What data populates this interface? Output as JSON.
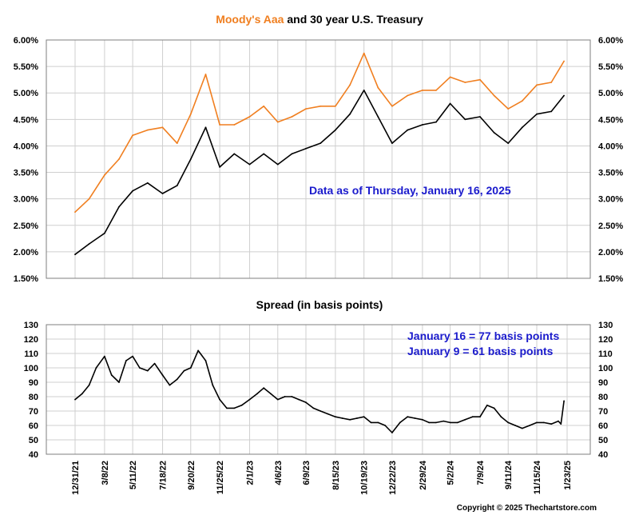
{
  "colors": {
    "aaa": "#F07F20",
    "treasury": "#000000",
    "spread": "#000000",
    "note": "#1A1ACC",
    "grid": "#CFCFCF",
    "frame": "#7F7F7F"
  },
  "chart_data": [
    {
      "type": "line",
      "title_part1": "Moody's Aaa",
      "title_part2": " and 30 year U.S. Treasury",
      "annotation": "Data as of Thursday, January 16, 2025",
      "y_tick_labels": [
        "6.00%",
        "5.50%",
        "5.00%",
        "4.50%",
        "4.00%",
        "3.50%",
        "3.00%",
        "2.50%",
        "2.00%",
        "1.50%"
      ],
      "ylim": [
        1.5,
        6.0
      ],
      "x_tick_labels": [
        "12/31/21",
        "3/8/22",
        "5/11/22",
        "7/18/22",
        "9/20/22",
        "11/25/22",
        "2/1/23",
        "4/6/23",
        "6/9/23",
        "8/15/23",
        "10/19/23",
        "12/22/23",
        "2/29/24",
        "5/2/24",
        "7/9/24",
        "9/11/24",
        "11/15/24",
        "1/23/25"
      ],
      "grid": true,
      "series": [
        {
          "name": "Moody's Aaa",
          "x": [
            "12/31/21",
            "2/1/22",
            "3/8/22",
            "4/10/22",
            "5/11/22",
            "6/14/22",
            "7/18/22",
            "8/20/22",
            "9/20/22",
            "10/24/22",
            "11/25/22",
            "12/28/22",
            "2/1/23",
            "3/5/23",
            "4/6/23",
            "5/8/23",
            "6/9/23",
            "7/12/23",
            "8/15/23",
            "9/17/23",
            "10/19/23",
            "11/20/23",
            "12/22/23",
            "1/26/24",
            "2/29/24",
            "3/31/24",
            "5/2/24",
            "6/5/24",
            "7/9/24",
            "8/10/24",
            "9/11/24",
            "10/13/24",
            "11/15/24",
            "12/18/24",
            "1/16/25"
          ],
          "values": [
            2.75,
            3.0,
            3.45,
            3.75,
            4.2,
            4.3,
            4.35,
            4.05,
            4.6,
            5.35,
            4.4,
            4.4,
            4.55,
            4.75,
            4.45,
            4.55,
            4.7,
            4.75,
            4.75,
            5.15,
            5.75,
            5.1,
            4.75,
            4.95,
            5.05,
            5.05,
            5.3,
            5.2,
            5.25,
            4.95,
            4.7,
            4.85,
            5.15,
            5.2,
            5.6
          ]
        },
        {
          "name": "30 year U.S. Treasury",
          "x": [
            "12/31/21",
            "2/1/22",
            "3/8/22",
            "4/10/22",
            "5/11/22",
            "6/14/22",
            "7/18/22",
            "8/20/22",
            "9/20/22",
            "10/24/22",
            "11/25/22",
            "12/28/22",
            "2/1/23",
            "3/5/23",
            "4/6/23",
            "5/8/23",
            "6/9/23",
            "7/12/23",
            "8/15/23",
            "9/17/23",
            "10/19/23",
            "11/20/23",
            "12/22/23",
            "1/26/24",
            "2/29/24",
            "3/31/24",
            "5/2/24",
            "6/5/24",
            "7/9/24",
            "8/10/24",
            "9/11/24",
            "10/13/24",
            "11/15/24",
            "12/18/24",
            "1/16/25"
          ],
          "values": [
            1.95,
            2.15,
            2.35,
            2.85,
            3.15,
            3.3,
            3.1,
            3.25,
            3.75,
            4.35,
            3.6,
            3.85,
            3.65,
            3.85,
            3.65,
            3.85,
            3.95,
            4.05,
            4.3,
            4.6,
            5.05,
            4.55,
            4.05,
            4.3,
            4.4,
            4.45,
            4.8,
            4.5,
            4.55,
            4.25,
            4.05,
            4.35,
            4.6,
            4.65,
            4.95
          ]
        }
      ]
    },
    {
      "type": "line",
      "title": "Spread (in basis points)",
      "annotations": [
        "January 16 = 77 basis points",
        "January 9 = 61 basis points"
      ],
      "y_tick_labels": [
        "130",
        "120",
        "110",
        "100",
        "90",
        "80",
        "70",
        "60",
        "50",
        "40"
      ],
      "ylim": [
        40,
        130
      ],
      "x_tick_labels": [
        "12/31/21",
        "3/8/22",
        "5/11/22",
        "7/18/22",
        "9/20/22",
        "11/25/22",
        "2/1/23",
        "4/6/23",
        "6/9/23",
        "8/15/23",
        "10/19/23",
        "12/22/23",
        "2/29/24",
        "5/2/24",
        "7/9/24",
        "9/11/24",
        "11/15/24",
        "1/23/25"
      ],
      "grid": true,
      "series": [
        {
          "name": "Spread",
          "x": [
            "12/31/21",
            "1/16/22",
            "2/1/22",
            "2/17/22",
            "3/8/22",
            "3/24/22",
            "4/10/22",
            "4/26/22",
            "5/11/22",
            "5/27/22",
            "6/14/22",
            "6/30/22",
            "7/18/22",
            "8/3/22",
            "8/20/22",
            "9/5/22",
            "9/20/22",
            "10/7/22",
            "10/24/22",
            "11/9/22",
            "11/25/22",
            "12/11/22",
            "12/28/22",
            "1/14/23",
            "2/1/23",
            "2/18/23",
            "3/5/23",
            "3/21/23",
            "4/6/23",
            "4/22/23",
            "5/8/23",
            "5/24/23",
            "6/9/23",
            "6/26/23",
            "7/12/23",
            "7/29/23",
            "8/15/23",
            "8/31/23",
            "9/17/23",
            "10/3/23",
            "10/19/23",
            "11/4/23",
            "11/20/23",
            "12/6/23",
            "12/22/23",
            "1/9/24",
            "1/26/24",
            "2/12/24",
            "2/29/24",
            "3/15/24",
            "3/31/24",
            "4/17/24",
            "5/2/24",
            "5/19/24",
            "6/5/24",
            "6/22/24",
            "7/9/24",
            "7/25/24",
            "8/10/24",
            "8/26/24",
            "9/11/24",
            "9/27/24",
            "10/13/24",
            "10/30/24",
            "11/15/24",
            "12/1/24",
            "12/18/24",
            "1/3/25",
            "1/9/25",
            "1/16/25"
          ],
          "values": [
            78,
            82,
            88,
            100,
            108,
            95,
            90,
            105,
            108,
            100,
            98,
            103,
            95,
            88,
            92,
            98,
            100,
            112,
            105,
            88,
            78,
            72,
            72,
            74,
            78,
            82,
            86,
            82,
            78,
            80,
            80,
            78,
            76,
            72,
            70,
            68,
            66,
            65,
            64,
            65,
            66,
            62,
            62,
            60,
            55,
            62,
            66,
            65,
            64,
            62,
            62,
            63,
            62,
            62,
            64,
            66,
            66,
            74,
            72,
            66,
            62,
            60,
            58,
            60,
            62,
            62,
            61,
            63,
            61,
            77
          ]
        }
      ]
    }
  ],
  "footer": {
    "copyright": "Copyright © 2025 Thechartstore.com"
  }
}
